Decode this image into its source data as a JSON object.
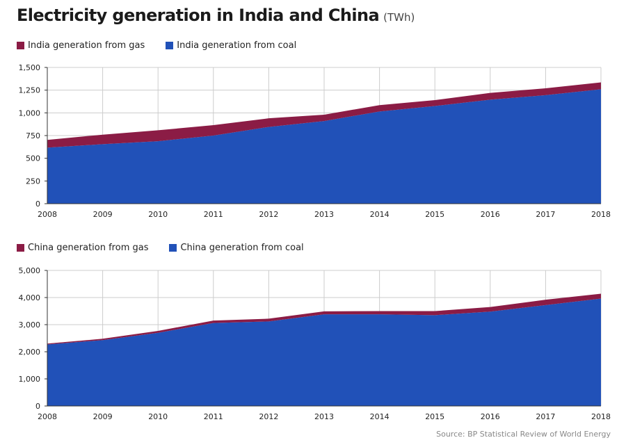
{
  "header": {
    "title": "Electricity generation in India and China",
    "unit": "(TWh)"
  },
  "source": "Source: BP Statistical Review of World Energy",
  "colors": {
    "gas": "#8b1c45",
    "coal": "#2151b8",
    "grid": "#cccccc"
  },
  "chart_data": [
    {
      "type": "area",
      "stacked": true,
      "x": [
        2008,
        2009,
        2010,
        2011,
        2012,
        2013,
        2014,
        2015,
        2016,
        2017,
        2018
      ],
      "ylim": [
        0,
        1500
      ],
      "yticks": [
        0,
        250,
        500,
        750,
        1000,
        1250,
        1500
      ],
      "ytick_labels": [
        "0",
        "250",
        "500",
        "750",
        "1,000",
        "1,250",
        "1,500"
      ],
      "grid": true,
      "legend_position": "top-left",
      "series": [
        {
          "name": "India generation from coal",
          "color": "#2151b8",
          "values": [
            617,
            655,
            688,
            750,
            845,
            910,
            1015,
            1075,
            1145,
            1195,
            1260
          ]
        },
        {
          "name": "India generation from gas",
          "color": "#8b1c45",
          "values": [
            85,
            105,
            120,
            115,
            95,
            70,
            70,
            65,
            75,
            75,
            75
          ]
        }
      ]
    },
    {
      "type": "area",
      "stacked": true,
      "x": [
        2008,
        2009,
        2010,
        2011,
        2012,
        2013,
        2014,
        2015,
        2016,
        2017,
        2018
      ],
      "ylim": [
        0,
        5000
      ],
      "yticks": [
        0,
        1000,
        2000,
        3000,
        4000,
        5000
      ],
      "ytick_labels": [
        "0",
        "1,000",
        "2,000",
        "3,000",
        "4,000",
        "5,000"
      ],
      "grid": true,
      "legend_position": "top-left",
      "series": [
        {
          "name": "China generation from coal",
          "color": "#2151b8",
          "values": [
            2270,
            2430,
            2700,
            3060,
            3120,
            3380,
            3380,
            3350,
            3480,
            3720,
            3960
          ]
        },
        {
          "name": "China generation from gas",
          "color": "#8b1c45",
          "values": [
            30,
            50,
            70,
            90,
            100,
            110,
            120,
            150,
            170,
            200,
            180
          ]
        }
      ]
    }
  ]
}
